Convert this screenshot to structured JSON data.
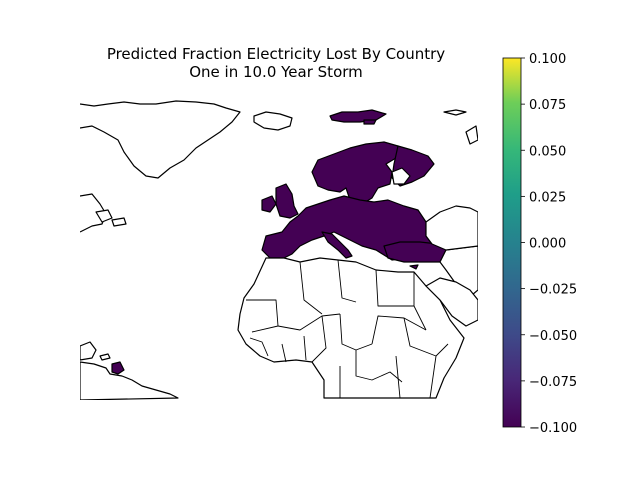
{
  "title": "Predicted Fraction Electricity Lost By Country",
  "subtitle": "One in 10.0 Year Storm",
  "colormap": "viridis",
  "colors": {
    "affected_fill": "#440154",
    "unaffected_fill": "#ffffff",
    "border": "#000000"
  },
  "colorbar": {
    "min": -0.1,
    "max": 0.1,
    "ticks": [
      "0.100",
      "0.075",
      "0.050",
      "0.025",
      "0.000",
      "−0.025",
      "−0.050",
      "−0.075",
      "−0.100"
    ]
  },
  "chart_data": {
    "type": "choropleth",
    "region": "Europe, North Africa, North Atlantic",
    "value_range": [
      -0.1,
      0.1
    ],
    "affected_regions": [
      "Europe",
      "Scandinavia",
      "Svalbard",
      "Turkey",
      "Cyprus",
      "French Guiana"
    ],
    "affected_value": -0.1
  }
}
